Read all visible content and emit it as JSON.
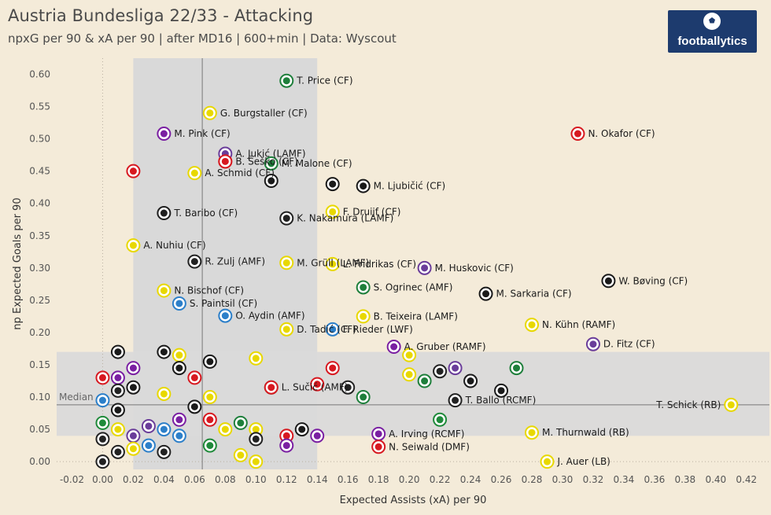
{
  "header": {
    "title": "Austria Bundesliga 22/33 - Attacking",
    "subtitle": "npxG per 90 & xA per 90 | after MD16  | 600+min  | Data: Wyscout",
    "logo_text": "footballytics"
  },
  "colors": {
    "background": "#f4ebd9",
    "logo_bg": "#1d3b6e",
    "band": "#d9d9d9"
  },
  "chart_data": {
    "type": "scatter",
    "title": "Austria Bundesliga 22/33 - Attacking",
    "xlabel": "Expected Assists (xA) per 90",
    "ylabel": "np Expected Goals per 90",
    "xlim": [
      -0.03,
      0.435
    ],
    "ylim": [
      -0.012,
      0.625
    ],
    "xticks": [
      -0.02,
      0.0,
      0.02,
      0.04,
      0.06,
      0.08,
      0.1,
      0.12,
      0.14,
      0.16,
      0.18,
      0.2,
      0.22,
      0.24,
      0.26,
      0.28,
      0.3,
      0.32,
      0.34,
      0.36,
      0.38,
      0.4,
      0.42
    ],
    "xtick_labels": [
      "-0.02",
      "0.00",
      "0.02",
      "0.04",
      "0.06",
      "0.08",
      "0.10",
      "0.12",
      "0.14",
      "0.16",
      "0.18",
      "0.20",
      "0.22",
      "0.24",
      "0.26",
      "0.28",
      "0.30",
      "0.32",
      "0.34",
      "0.36",
      "0.38",
      "0.40",
      "0.42"
    ],
    "yticks": [
      0.0,
      0.05,
      0.1,
      0.15,
      0.2,
      0.25,
      0.3,
      0.35,
      0.4,
      0.45,
      0.5,
      0.55,
      0.6
    ],
    "ytick_labels": [
      "0.00",
      "0.05",
      "0.10",
      "0.15",
      "0.20",
      "0.25",
      "0.30",
      "0.35",
      "0.40",
      "0.45",
      "0.50",
      "0.55",
      "0.60"
    ],
    "median_x": 0.065,
    "median_y": 0.088,
    "median_label": "Median",
    "vertical_band": [
      0.02,
      0.14
    ],
    "horizontal_band": [
      0.04,
      0.17
    ],
    "club_colors": {
      "salzburg": "#d71920",
      "austria": "#6a3d9a",
      "sturm": "#1a1a1a",
      "rapid": "#1e7f3b",
      "lask": "#222222",
      "wac": "#1f1f1f",
      "altach": "#e8d800",
      "austria_klagenfurt": "#7a1fa2",
      "ried": "#1f8a3a",
      "hartberg": "#2b2b2b",
      "lustenau": "#2c7fc9",
      "wsg": "#2e7d32"
    },
    "labeled_points": [
      {
        "name": "T. Price (CF)",
        "x": 0.12,
        "y": 0.59,
        "club": "rapid"
      },
      {
        "name": "G. Burgstaller (CF)",
        "x": 0.07,
        "y": 0.54,
        "club": "altach"
      },
      {
        "name": "A. Jukić (LAMF)",
        "x": 0.08,
        "y": 0.477,
        "club": "austria"
      },
      {
        "name": "B. Šeško (CF)",
        "x": 0.08,
        "y": 0.465,
        "club": "salzburg"
      },
      {
        "name": "M. Pink (CF)",
        "x": 0.04,
        "y": 0.508,
        "club": "austria_klagenfurt"
      },
      {
        "name": "N. Okafor (CF)",
        "x": 0.31,
        "y": 0.508,
        "club": "salzburg"
      },
      {
        "name": "A. Schmid (CF)",
        "x": 0.06,
        "y": 0.447,
        "club": "altach"
      },
      {
        "name": "M. Malone (CF)",
        "x": 0.11,
        "y": 0.462,
        "club": "rapid"
      },
      {
        "name": "M. Ljubičić (CF)",
        "x": 0.17,
        "y": 0.427,
        "club": "sturm"
      },
      {
        "name": "F. Druijf (CF)",
        "x": 0.15,
        "y": 0.387,
        "club": "altach"
      },
      {
        "name": "T. Baribo (CF)",
        "x": 0.04,
        "y": 0.385,
        "club": "wac"
      },
      {
        "name": "K. Nakamura (LAMF)",
        "x": 0.12,
        "y": 0.377,
        "club": "lask"
      },
      {
        "name": "L. Fridrikas (CF)",
        "x": 0.15,
        "y": 0.306,
        "club": "altach"
      },
      {
        "name": "A. Nuhiu (CF)",
        "x": 0.02,
        "y": 0.335,
        "club": "altach"
      },
      {
        "name": "R. Zulj (AMF)",
        "x": 0.06,
        "y": 0.31,
        "club": "lask"
      },
      {
        "name": "M. Grüll (LAMF)",
        "x": 0.12,
        "y": 0.308,
        "club": "altach"
      },
      {
        "name": "M. Huskovic (CF)",
        "x": 0.21,
        "y": 0.3,
        "club": "austria"
      },
      {
        "name": "N. Bischof (CF)",
        "x": 0.04,
        "y": 0.265,
        "club": "altach"
      },
      {
        "name": "S. Paintsil (CF)",
        "x": 0.05,
        "y": 0.245,
        "club": "lustenau"
      },
      {
        "name": "S. Ogrinec (AMF)",
        "x": 0.17,
        "y": 0.27,
        "club": "rapid"
      },
      {
        "name": "M. Sarkaria (CF)",
        "x": 0.25,
        "y": 0.26,
        "club": "sturm"
      },
      {
        "name": "W. Bøving (CF)",
        "x": 0.33,
        "y": 0.28,
        "club": "sturm"
      },
      {
        "name": "B. Teixeira (LAMF)",
        "x": 0.17,
        "y": 0.225,
        "club": "altach"
      },
      {
        "name": "O. Aydin (AMF)",
        "x": 0.08,
        "y": 0.226,
        "club": "lustenau"
      },
      {
        "name": "F. Rieder (LWF)",
        "x": 0.15,
        "y": 0.205,
        "club": "lustenau"
      },
      {
        "name": "N. Kühn (RAMF)",
        "x": 0.28,
        "y": 0.212,
        "club": "altach"
      },
      {
        "name": "D. Tadić (CF)",
        "x": 0.12,
        "y": 0.205,
        "club": "altach"
      },
      {
        "name": "A. Gruber (RAMF)",
        "x": 0.19,
        "y": 0.178,
        "club": "austria_klagenfurt"
      },
      {
        "name": "D. Fitz (CF)",
        "x": 0.32,
        "y": 0.182,
        "club": "austria"
      },
      {
        "name": "L. Sučić (AMF)",
        "x": 0.11,
        "y": 0.115,
        "club": "salzburg"
      },
      {
        "name": "T. Ballo (RCMF)",
        "x": 0.23,
        "y": 0.095,
        "club": "lask"
      },
      {
        "name": "T. Schick (RB)",
        "x": 0.41,
        "y": 0.088,
        "club": "altach"
      },
      {
        "name": "A. Irving (RCMF)",
        "x": 0.18,
        "y": 0.043,
        "club": "austria_klagenfurt"
      },
      {
        "name": "M. Thurnwald (RB)",
        "x": 0.28,
        "y": 0.045,
        "club": "altach"
      },
      {
        "name": "N. Seiwald (DMF)",
        "x": 0.18,
        "y": 0.023,
        "club": "salzburg"
      },
      {
        "name": "J. Auer (LB)",
        "x": 0.29,
        "y": 0.0,
        "club": "altach"
      }
    ],
    "unlabeled_points": [
      {
        "x": 0.02,
        "y": 0.45,
        "club": "salzburg"
      },
      {
        "x": 0.08,
        "y": 0.465,
        "club": "salzburg"
      },
      {
        "x": 0.11,
        "y": 0.435,
        "club": "sturm"
      },
      {
        "x": 0.15,
        "y": 0.43,
        "club": "sturm"
      },
      {
        "x": 0.0,
        "y": 0.095,
        "club": "lustenau"
      },
      {
        "x": 0.01,
        "y": 0.13,
        "club": "austria_klagenfurt"
      },
      {
        "x": 0.01,
        "y": 0.17,
        "club": "sturm"
      },
      {
        "x": 0.02,
        "y": 0.145,
        "club": "austria_klagenfurt"
      },
      {
        "x": 0.0,
        "y": 0.13,
        "club": "salzburg"
      },
      {
        "x": 0.01,
        "y": 0.11,
        "club": "lask"
      },
      {
        "x": 0.02,
        "y": 0.115,
        "club": "sturm"
      },
      {
        "x": 0.01,
        "y": 0.08,
        "club": "sturm"
      },
      {
        "x": 0.0,
        "y": 0.06,
        "club": "ried"
      },
      {
        "x": 0.01,
        "y": 0.05,
        "club": "altach"
      },
      {
        "x": 0.0,
        "y": 0.035,
        "club": "lask"
      },
      {
        "x": 0.02,
        "y": 0.04,
        "club": "austria"
      },
      {
        "x": 0.0,
        "y": 0.0,
        "club": "lask"
      },
      {
        "x": 0.01,
        "y": 0.015,
        "club": "lask"
      },
      {
        "x": 0.02,
        "y": 0.02,
        "club": "altach"
      },
      {
        "x": 0.03,
        "y": 0.025,
        "club": "lustenau"
      },
      {
        "x": 0.03,
        "y": 0.055,
        "club": "austria"
      },
      {
        "x": 0.04,
        "y": 0.05,
        "club": "lustenau"
      },
      {
        "x": 0.04,
        "y": 0.015,
        "club": "lask"
      },
      {
        "x": 0.05,
        "y": 0.04,
        "club": "lustenau"
      },
      {
        "x": 0.05,
        "y": 0.065,
        "club": "austria_klagenfurt"
      },
      {
        "x": 0.04,
        "y": 0.105,
        "club": "altach"
      },
      {
        "x": 0.04,
        "y": 0.17,
        "club": "sturm"
      },
      {
        "x": 0.05,
        "y": 0.165,
        "club": "altach"
      },
      {
        "x": 0.05,
        "y": 0.145,
        "club": "sturm"
      },
      {
        "x": 0.06,
        "y": 0.13,
        "club": "salzburg"
      },
      {
        "x": 0.07,
        "y": 0.155,
        "club": "sturm"
      },
      {
        "x": 0.07,
        "y": 0.1,
        "club": "altach"
      },
      {
        "x": 0.06,
        "y": 0.085,
        "club": "sturm"
      },
      {
        "x": 0.07,
        "y": 0.065,
        "club": "salzburg"
      },
      {
        "x": 0.08,
        "y": 0.05,
        "club": "altach"
      },
      {
        "x": 0.09,
        "y": 0.06,
        "club": "rapid"
      },
      {
        "x": 0.07,
        "y": 0.025,
        "club": "ried"
      },
      {
        "x": 0.09,
        "y": 0.01,
        "club": "altach"
      },
      {
        "x": 0.1,
        "y": 0.05,
        "club": "altach"
      },
      {
        "x": 0.1,
        "y": 0.035,
        "club": "lask"
      },
      {
        "x": 0.1,
        "y": 0.0,
        "club": "altach"
      },
      {
        "x": 0.12,
        "y": 0.04,
        "club": "salzburg"
      },
      {
        "x": 0.12,
        "y": 0.025,
        "club": "austria_klagenfurt"
      },
      {
        "x": 0.13,
        "y": 0.05,
        "club": "sturm"
      },
      {
        "x": 0.14,
        "y": 0.04,
        "club": "austria_klagenfurt"
      },
      {
        "x": 0.1,
        "y": 0.16,
        "club": "altach"
      },
      {
        "x": 0.11,
        "y": 0.115,
        "club": "rapid"
      },
      {
        "x": 0.14,
        "y": 0.12,
        "club": "salzburg"
      },
      {
        "x": 0.15,
        "y": 0.145,
        "club": "salzburg"
      },
      {
        "x": 0.16,
        "y": 0.115,
        "club": "lask"
      },
      {
        "x": 0.17,
        "y": 0.1,
        "club": "rapid"
      },
      {
        "x": 0.2,
        "y": 0.135,
        "club": "altach"
      },
      {
        "x": 0.21,
        "y": 0.125,
        "club": "rapid"
      },
      {
        "x": 0.22,
        "y": 0.14,
        "club": "lask"
      },
      {
        "x": 0.23,
        "y": 0.145,
        "club": "austria"
      },
      {
        "x": 0.24,
        "y": 0.125,
        "club": "sturm"
      },
      {
        "x": 0.26,
        "y": 0.11,
        "club": "sturm"
      },
      {
        "x": 0.27,
        "y": 0.145,
        "club": "rapid"
      },
      {
        "x": 0.22,
        "y": 0.065,
        "club": "ried"
      },
      {
        "x": 0.2,
        "y": 0.165,
        "club": "altach"
      }
    ]
  }
}
